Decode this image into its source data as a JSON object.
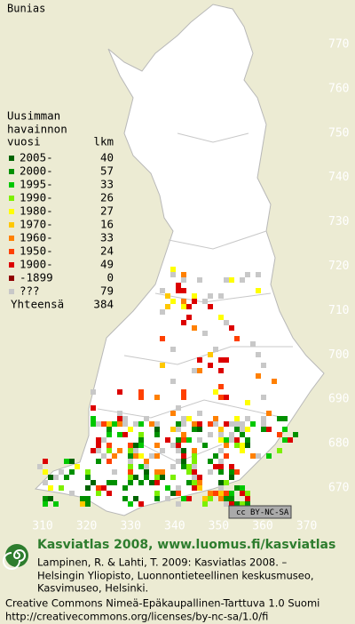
{
  "title": "Bunias",
  "map": {
    "y_labels": [
      770,
      760,
      750,
      740,
      730,
      720,
      710,
      700,
      690,
      680,
      670
    ],
    "x_labels": [
      310,
      320,
      330,
      340,
      350,
      360,
      370
    ]
  },
  "legend": {
    "header": [
      "Uusimman",
      "havainnon",
      "vuosi"
    ],
    "count_header": "lkm",
    "rows": [
      {
        "label": "2005-",
        "count": 40,
        "color": "#006400"
      },
      {
        "label": "2000-",
        "count": 57,
        "color": "#009000"
      },
      {
        "label": "1995-",
        "count": 33,
        "color": "#00c800"
      },
      {
        "label": "1990-",
        "count": 26,
        "color": "#7cf000"
      },
      {
        "label": "1980-",
        "count": 27,
        "color": "#ffff00"
      },
      {
        "label": "1970-",
        "count": 16,
        "color": "#ffc800"
      },
      {
        "label": "1960-",
        "count": 33,
        "color": "#ff8000"
      },
      {
        "label": "1950-",
        "count": 24,
        "color": "#ff4000"
      },
      {
        "label": "1900-",
        "count": 49,
        "color": "#dc0000"
      },
      {
        "label": "-1899",
        "count": 0,
        "color": "#900000"
      },
      {
        "label": "???",
        "count": 79,
        "color": "#c8c8c8"
      }
    ],
    "total_label": "Yhteensä",
    "total": 384
  },
  "license_badge": {
    "cc": "cc",
    "text": "BY-NC-SA"
  },
  "footer": {
    "heading": "Kasviatlas 2008, www.luomus.fi/kasviatlas",
    "citation": [
      "Lampinen, R. & Lahti, T. 2009: Kasviatlas 2008. –",
      "Helsingin Yliopisto, Luonnontieteellinen keskusmuseo,",
      "Kasvimuseo, Helsinki."
    ],
    "license": [
      "Creative Commons Nimeä-Epäkaupallinen-Tarttuva 1.0 Suomi",
      "http://creativecommons.org/licenses/by-nc-sa/1.0/fi"
    ]
  }
}
